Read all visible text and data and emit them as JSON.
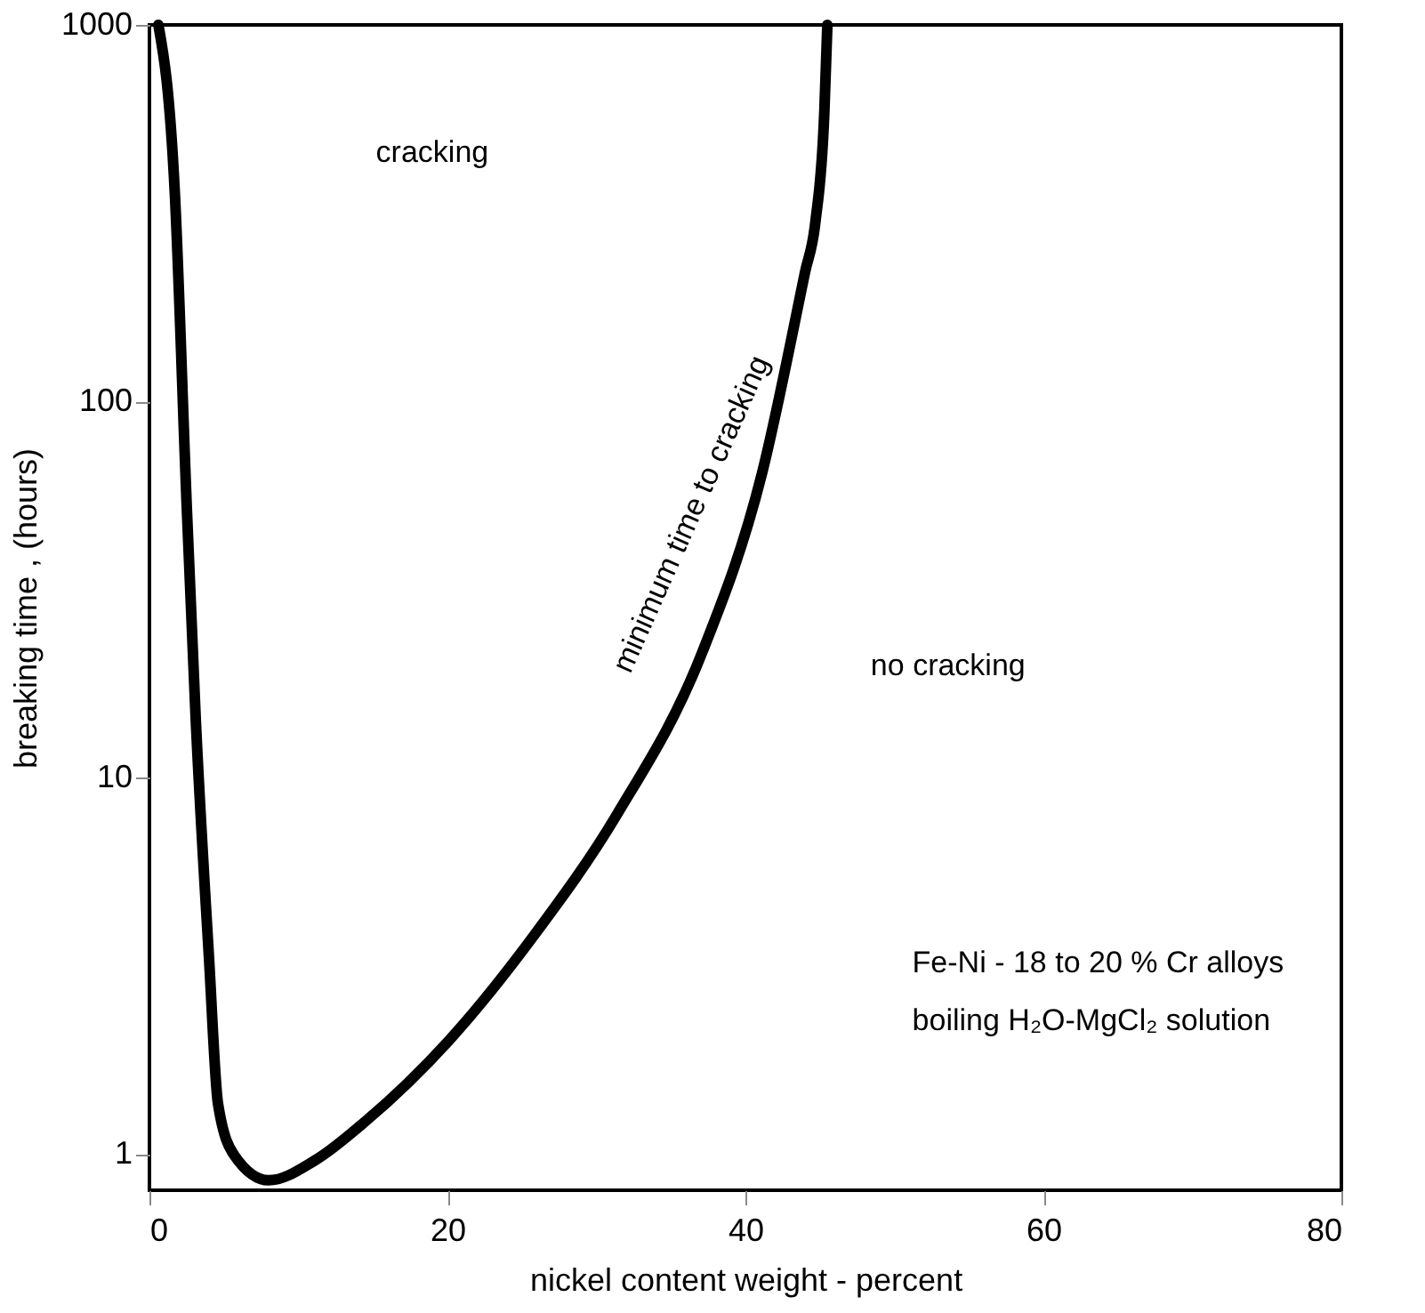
{
  "chart_data": {
    "type": "line",
    "xlabel": "nickel content   weight - percent",
    "ylabel": "breaking time , (hours)",
    "x": [
      0.6,
      1.7,
      2.5,
      3.1,
      4.0,
      4.6,
      5.7,
      8.0,
      11.1,
      14.5,
      20.1,
      25.8,
      31.4,
      37.1,
      41.1,
      44.0,
      44.7,
      45.3,
      45.5
    ],
    "series": [
      {
        "color": "#000000",
        "values": [
          1000,
          360,
          53,
          14.5,
          3.3,
          1.36,
          0.99,
          0.85,
          0.96,
          1.22,
          2.0,
          3.8,
          8.0,
          21.5,
          64,
          220,
          300,
          590,
          1000
        ]
      }
    ],
    "xlim": [
      0,
      80
    ],
    "xticks": [
      0,
      20,
      40,
      60,
      80
    ],
    "ylim": [
      0.8,
      1000
    ],
    "yticks": [
      1,
      10,
      100,
      1000
    ],
    "log": "y",
    "grid": false,
    "marker": "none",
    "line_style": "solid",
    "annotations": [
      "cracking",
      "no cracking",
      "minimum time to cracking",
      "Fe-Ni - 18 to 20 % Cr  alloys",
      "boiling H₂O-MgCl₂ solution"
    ]
  }
}
